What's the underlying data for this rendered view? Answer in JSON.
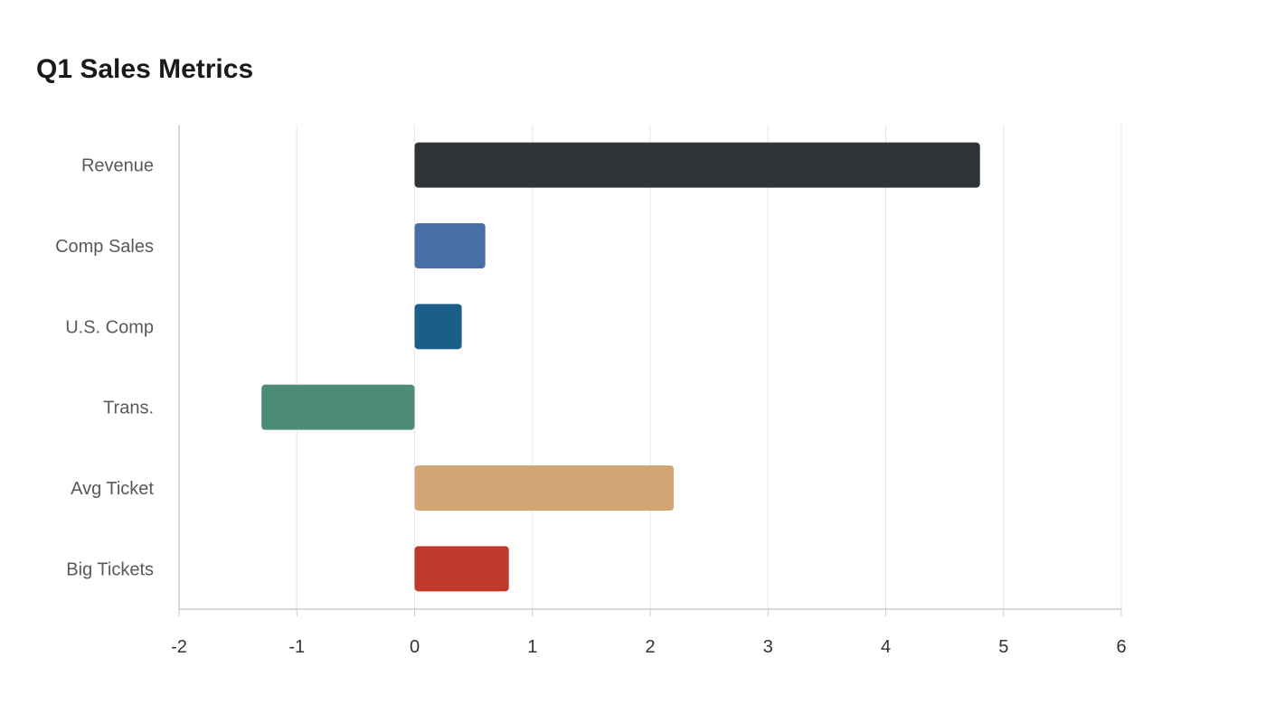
{
  "chart_data": {
    "type": "bar",
    "orientation": "horizontal",
    "title": "Q1 Sales Metrics",
    "xlabel": "",
    "ylabel": "",
    "categories": [
      "Revenue",
      "Comp Sales",
      "U.S. Comp",
      "Trans.",
      "Avg Ticket",
      "Big Tickets"
    ],
    "values": [
      4.8,
      0.6,
      0.4,
      -1.3,
      2.2,
      0.8
    ],
    "colors": [
      "#2e3437",
      "#4a6fa5",
      "#1b5f89",
      "#4e8c7a",
      "#d4a574",
      "#c0392b"
    ],
    "xlim": [
      -2,
      6
    ],
    "xticks": [
      "-2",
      "-1",
      "0",
      "1",
      "2",
      "3",
      "4",
      "5",
      "6"
    ],
    "grid": "vertical",
    "legend": "none"
  }
}
